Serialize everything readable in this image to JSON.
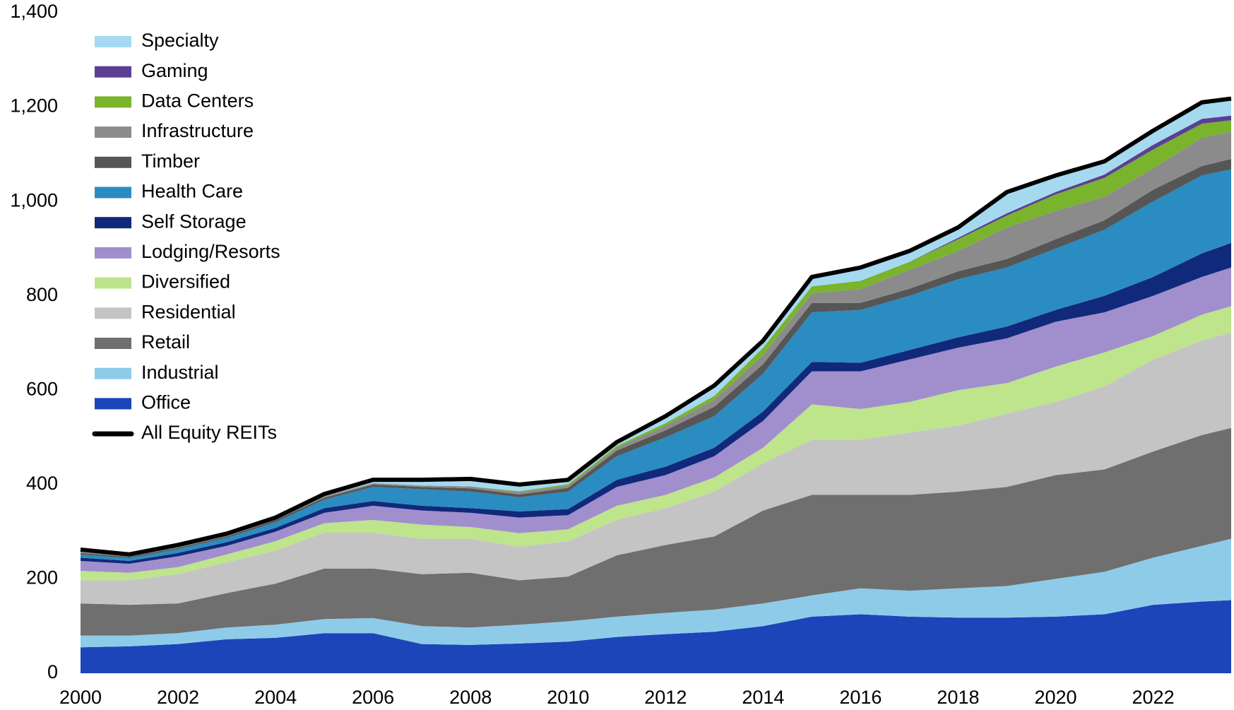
{
  "chart_data": {
    "type": "stacked_area",
    "x": [
      2000,
      2001,
      2002,
      2003,
      2004,
      2005,
      2006,
      2007,
      2008,
      2009,
      2010,
      2011,
      2012,
      2013,
      2014,
      2015,
      2016,
      2017,
      2018,
      2019,
      2020,
      2021,
      2022,
      2023,
      2023.6
    ],
    "xlim": [
      2000,
      2023.6
    ],
    "xticks": [
      2000,
      2002,
      2004,
      2006,
      2008,
      2010,
      2012,
      2014,
      2016,
      2018,
      2020,
      2022
    ],
    "ylim": [
      0,
      1400
    ],
    "yticks": [
      0,
      200,
      400,
      600,
      800,
      {
        "value": 1000,
        "label": "1,000"
      },
      {
        "value": 1200,
        "label": "1,200"
      },
      {
        "value": 1400,
        "label": "1,400"
      }
    ],
    "series": [
      {
        "name": "Office",
        "color": "#1c45b9",
        "values": [
          55,
          57,
          62,
          72,
          75,
          85,
          85,
          62,
          60,
          63,
          67,
          77,
          83,
          88,
          100,
          120,
          125,
          120,
          118,
          118,
          120,
          125,
          145,
          152,
          155
        ]
      },
      {
        "name": "Industrial",
        "color": "#8ecbe9",
        "values": [
          25,
          23,
          23,
          25,
          28,
          30,
          32,
          38,
          37,
          40,
          43,
          43,
          45,
          47,
          48,
          45,
          55,
          55,
          62,
          67,
          80,
          90,
          100,
          118,
          130
        ]
      },
      {
        "name": "Retail",
        "color": "#6f6f6f",
        "values": [
          68,
          65,
          63,
          73,
          87,
          107,
          105,
          110,
          116,
          94,
          95,
          130,
          144,
          155,
          197,
          213,
          198,
          203,
          205,
          210,
          220,
          217,
          225,
          235,
          235
        ]
      },
      {
        "name": "Residential",
        "color": "#c4c4c4",
        "values": [
          49,
          52,
          62,
          65,
          70,
          76,
          76,
          75,
          72,
          71,
          75,
          75,
          78,
          95,
          100,
          117,
          117,
          132,
          140,
          155,
          155,
          176,
          195,
          200,
          202
        ]
      },
      {
        "name": "Diversified",
        "color": "#bee48c",
        "values": [
          20,
          16,
          15,
          17,
          20,
          20,
          27,
          30,
          25,
          29,
          25,
          30,
          28,
          30,
          33,
          75,
          65,
          65,
          75,
          65,
          75,
          72,
          50,
          55,
          56
        ]
      },
      {
        "name": "Lodging/Resorts",
        "color": "#a18ecd",
        "values": [
          21,
          19,
          23,
          18,
          20,
          22,
          30,
          30,
          30,
          33,
          30,
          40,
          42,
          45,
          57,
          70,
          80,
          90,
          90,
          95,
          95,
          85,
          85,
          80,
          82
        ]
      },
      {
        "name": "Self Storage",
        "color": "#10297a",
        "values": [
          7,
          6,
          7,
          8,
          8,
          10,
          10,
          10,
          10,
          13,
          13,
          15,
          18,
          18,
          20,
          20,
          18,
          20,
          22,
          25,
          25,
          35,
          40,
          50,
          52
        ]
      },
      {
        "name": "Health Care",
        "color": "#2a8cc1",
        "values": [
          7,
          6,
          8,
          9,
          12,
          18,
          30,
          35,
          35,
          30,
          37,
          50,
          62,
          67,
          80,
          105,
          112,
          115,
          123,
          125,
          130,
          140,
          160,
          165,
          156
        ]
      },
      {
        "name": "Timber",
        "color": "#565656",
        "values": [
          3,
          3,
          3,
          3,
          5,
          4,
          5,
          5,
          7,
          6,
          8,
          12,
          15,
          20,
          20,
          20,
          15,
          15,
          17,
          18,
          20,
          20,
          25,
          20,
          22
        ]
      },
      {
        "name": "Infrastructure",
        "color": "#8b8b8b",
        "values": [
          2,
          2,
          2,
          2,
          2,
          3,
          3,
          3,
          4,
          5,
          5,
          6,
          10,
          15,
          20,
          20,
          30,
          40,
          43,
          67,
          60,
          50,
          45,
          60,
          58
        ]
      },
      {
        "name": "Data Centers",
        "color": "#7ab32c",
        "values": [
          0,
          0,
          0,
          0,
          0,
          0,
          0,
          0,
          0,
          2,
          3,
          4,
          5,
          8,
          15,
          15,
          17,
          17,
          25,
          25,
          35,
          40,
          40,
          30,
          24
        ]
      },
      {
        "name": "Gaming",
        "color": "#5a3f93",
        "values": [
          0,
          0,
          0,
          0,
          0,
          0,
          0,
          0,
          0,
          0,
          0,
          0,
          0,
          0,
          0,
          0,
          0,
          0,
          3,
          5,
          5,
          7,
          10,
          10,
          10
        ]
      },
      {
        "name": "Specialty",
        "color": "#a5d9f0",
        "values": [
          5,
          3,
          4,
          4,
          3,
          5,
          7,
          12,
          16,
          14,
          9,
          8,
          15,
          22,
          15,
          20,
          28,
          23,
          22,
          45,
          35,
          28,
          30,
          35,
          36
        ]
      }
    ],
    "total": {
      "name": "All Equity REITs",
      "color": "#000000",
      "values": [
        262,
        252,
        272,
        296,
        330,
        380,
        410,
        410,
        412,
        400,
        410,
        490,
        545,
        610,
        705,
        840,
        860,
        895,
        945,
        1020,
        1055,
        1085,
        1150,
        1210,
        1218
      ]
    }
  }
}
